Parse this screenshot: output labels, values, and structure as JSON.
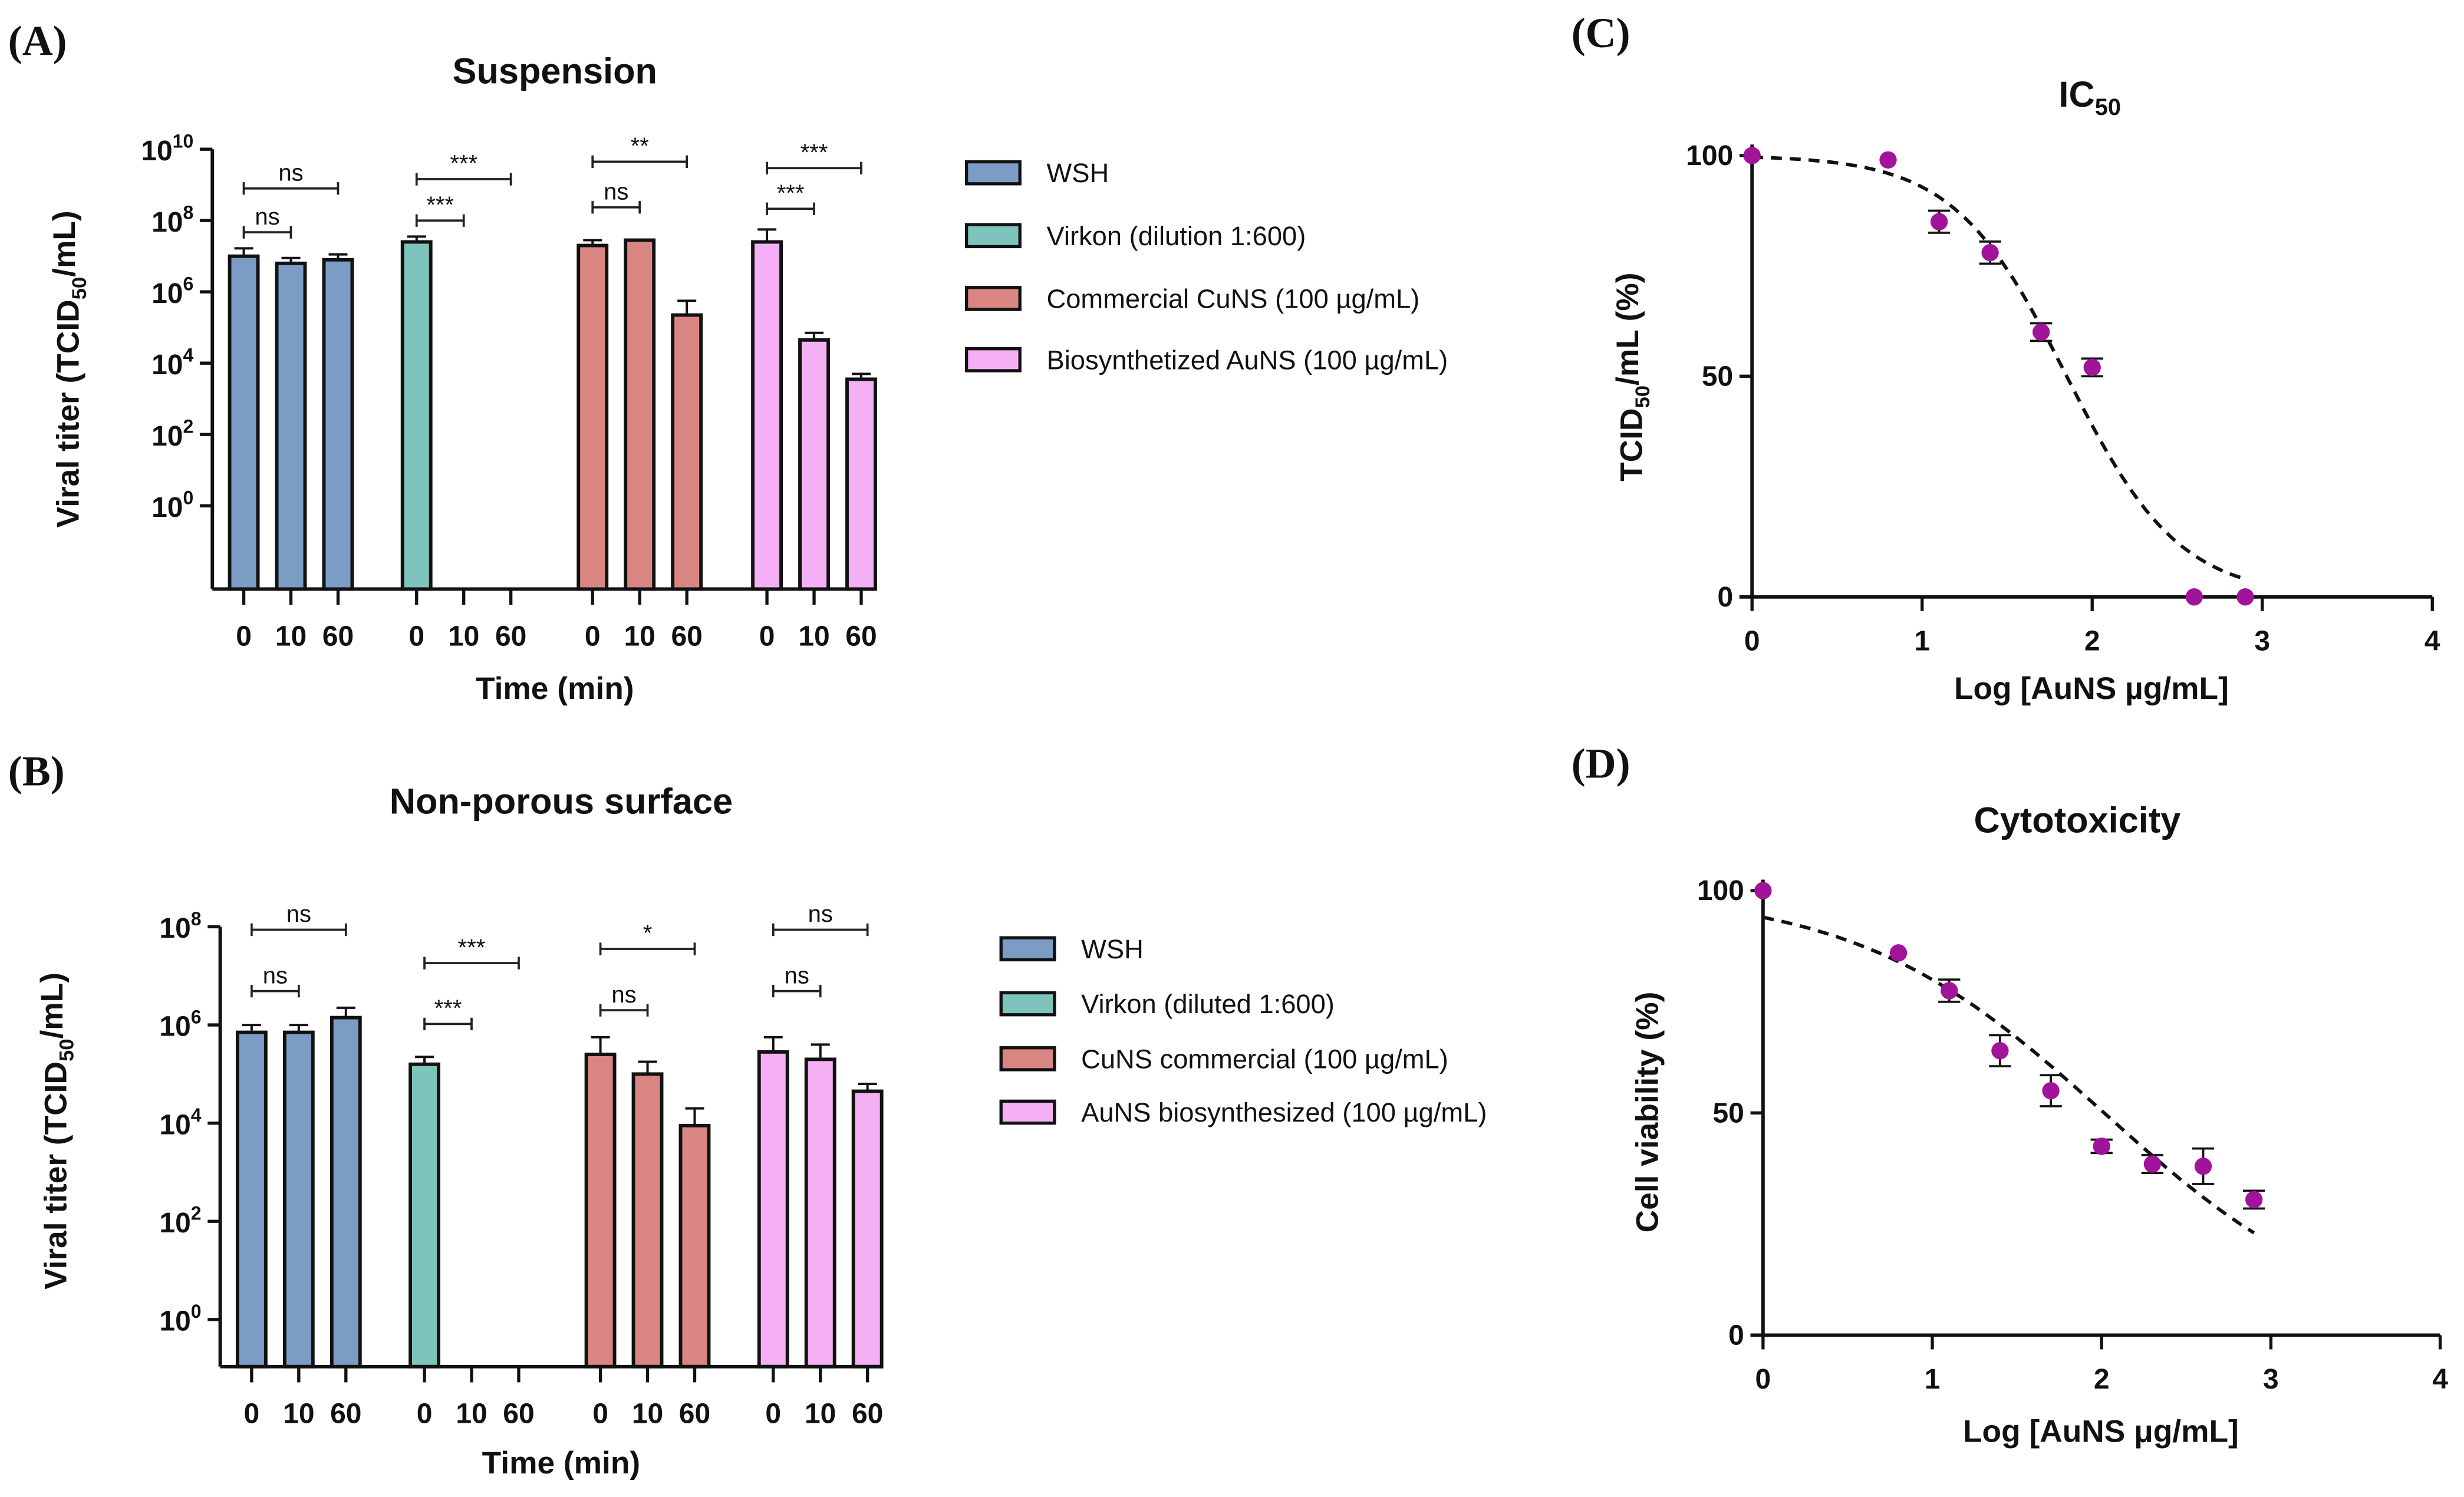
{
  "chart_data": [
    {
      "panel": "(A)",
      "type": "bar",
      "title": "Suspension",
      "xlabel": "Time (min)",
      "ylabel_parts": [
        "Viral titer (TCID",
        "50",
        "/mL)"
      ],
      "yscale": "log10",
      "ylim_exponent": [
        -2.3,
        10
      ],
      "ytick_base": "10",
      "ytick_exponents": [
        "0",
        "2",
        "4",
        "6",
        "8",
        "10"
      ],
      "time_labels": [
        "0",
        "10",
        "60"
      ],
      "series": [
        {
          "name": "WSH",
          "color": "#7b9cc4",
          "log_values": [
            7.0,
            6.8,
            6.9
          ],
          "log_err_top": [
            7.22,
            6.95,
            7.05
          ]
        },
        {
          "name": "Virkon (dilution 1:600)",
          "color": "#7cc4bc",
          "log_values": [
            7.4,
            null,
            null
          ],
          "log_err_top": [
            7.55,
            null,
            null
          ]
        },
        {
          "name": "Commercial CuNS (100 µg/mL)",
          "color": "#d98683",
          "log_values": [
            7.3,
            7.45,
            5.35
          ],
          "log_err_top": [
            7.45,
            7.45,
            5.75
          ]
        },
        {
          "name": "Biosynthetized AuNS (100 µg/mL)",
          "color": "#f5b0f5",
          "log_values": [
            7.4,
            4.65,
            3.55
          ],
          "log_err_top": [
            7.75,
            4.85,
            3.7
          ]
        }
      ],
      "significance": [
        {
          "group": 0,
          "from": 0,
          "to": 1,
          "label": "ns",
          "log_level": 7.67
        },
        {
          "group": 0,
          "from": 0,
          "to": 2,
          "label": "ns",
          "log_level": 8.9
        },
        {
          "group": 1,
          "from": 0,
          "to": 1,
          "label": "***",
          "log_level": 8.0
        },
        {
          "group": 1,
          "from": 0,
          "to": 2,
          "label": "***",
          "log_level": 9.16
        },
        {
          "group": 2,
          "from": 0,
          "to": 1,
          "label": "ns",
          "log_level": 8.37
        },
        {
          "group": 2,
          "from": 0,
          "to": 2,
          "label": "**",
          "log_level": 9.65
        },
        {
          "group": 3,
          "from": 0,
          "to": 1,
          "label": "***",
          "log_level": 8.33
        },
        {
          "group": 3,
          "from": 0,
          "to": 2,
          "label": "***",
          "log_level": 9.47
        }
      ],
      "legend": "right"
    },
    {
      "panel": "(B)",
      "type": "bar",
      "title": "Non-porous surface",
      "xlabel": "Time (min)",
      "ylabel_parts": [
        "Viral titer (TCID",
        "50",
        "/mL)"
      ],
      "yscale": "log10",
      "ylim_exponent": [
        -1,
        8
      ],
      "ytick_base": "10",
      "ytick_exponents": [
        "0",
        "2",
        "4",
        "6",
        "8"
      ],
      "time_labels": [
        "0",
        "10",
        "60"
      ],
      "series": [
        {
          "name": "WSH",
          "color": "#7b9cc4",
          "log_values": [
            5.85,
            5.85,
            6.15
          ],
          "log_err_top": [
            6.0,
            6.0,
            6.35
          ]
        },
        {
          "name": "Virkon (diluted 1:600)",
          "color": "#7cc4bc",
          "log_values": [
            5.2,
            null,
            null
          ],
          "log_err_top": [
            5.35,
            null,
            null
          ]
        },
        {
          "name": "CuNS commercial (100 µg/mL)",
          "color": "#d98683",
          "log_values": [
            5.4,
            5.0,
            3.95
          ],
          "log_err_top": [
            5.75,
            5.25,
            4.3
          ]
        },
        {
          "name": "AuNS biosynthesized (100 µg/mL)",
          "color": "#f5b0f5",
          "log_values": [
            5.45,
            5.3,
            4.65
          ],
          "log_err_top": [
            5.75,
            5.6,
            4.8
          ]
        }
      ],
      "significance": [
        {
          "group": 0,
          "from": 0,
          "to": 1,
          "label": "ns",
          "log_level": 6.69
        },
        {
          "group": 0,
          "from": 0,
          "to": 2,
          "label": "ns",
          "log_level": 7.94
        },
        {
          "group": 1,
          "from": 0,
          "to": 1,
          "label": "***",
          "log_level": 6.02
        },
        {
          "group": 1,
          "from": 0,
          "to": 2,
          "label": "***",
          "log_level": 7.26
        },
        {
          "group": 2,
          "from": 0,
          "to": 1,
          "label": "ns",
          "log_level": 6.3
        },
        {
          "group": 2,
          "from": 0,
          "to": 2,
          "label": "*",
          "log_level": 7.55
        },
        {
          "group": 3,
          "from": 0,
          "to": 1,
          "label": "ns",
          "log_level": 6.69
        },
        {
          "group": 3,
          "from": 0,
          "to": 2,
          "label": "ns",
          "log_level": 7.94
        }
      ],
      "legend": "right"
    },
    {
      "panel": "(C)",
      "type": "scatter",
      "title_parts": [
        "IC",
        "50"
      ],
      "xlabel": "Log [AuNS µg/mL]",
      "ylabel_parts": [
        "TCID",
        "50",
        "/mL (%)"
      ],
      "xlim": [
        0,
        4
      ],
      "ylim": [
        0,
        100
      ],
      "xticks": [
        "0",
        "1",
        "2",
        "3",
        "4"
      ],
      "yticks": [
        "0",
        "50",
        "100"
      ],
      "point_color": "#a0139a",
      "points": [
        {
          "x": 0,
          "y": 100,
          "err": 0
        },
        {
          "x": 0.8,
          "y": 99,
          "err": 0
        },
        {
          "x": 1.1,
          "y": 85,
          "err": 2.5
        },
        {
          "x": 1.4,
          "y": 78,
          "err": 2.5
        },
        {
          "x": 1.7,
          "y": 60,
          "err": 2
        },
        {
          "x": 2.0,
          "y": 52,
          "err": 2
        },
        {
          "x": 2.6,
          "y": 0,
          "err": 0
        },
        {
          "x": 2.9,
          "y": 0,
          "err": 0
        }
      ],
      "fit": {
        "model": "sigmoid",
        "top": 100,
        "bottom": 0,
        "logIC50": 1.85,
        "hill": 1.31,
        "x_range": [
          0,
          2.9
        ]
      }
    },
    {
      "panel": "(D)",
      "type": "scatter",
      "title": "Cytotoxicity",
      "xlabel": "Log [AuNS μg/mL]",
      "ylabel": "Cell viability (%)",
      "xlim": [
        0,
        4
      ],
      "ylim": [
        0,
        100
      ],
      "xticks": [
        "0",
        "1",
        "2",
        "3",
        "4"
      ],
      "yticks": [
        "0",
        "50",
        "100"
      ],
      "point_color": "#a0139a",
      "points": [
        {
          "x": 0,
          "y": 100,
          "err": 0
        },
        {
          "x": 0.8,
          "y": 86,
          "err": 0
        },
        {
          "x": 1.1,
          "y": 77.5,
          "err": 2.5
        },
        {
          "x": 1.4,
          "y": 64,
          "err": 3.5
        },
        {
          "x": 1.7,
          "y": 55,
          "err": 3.5
        },
        {
          "x": 2.0,
          "y": 42.5,
          "err": 1.5
        },
        {
          "x": 2.3,
          "y": 38.5,
          "err": 2
        },
        {
          "x": 2.6,
          "y": 38,
          "err": 4
        },
        {
          "x": 2.9,
          "y": 30.5,
          "err": 2
        }
      ],
      "fit": {
        "model": "sigmoid",
        "top": 100,
        "bottom": 0,
        "logIC50": 2.015,
        "hill": 0.593,
        "x_range": [
          0,
          2.9
        ]
      }
    }
  ]
}
